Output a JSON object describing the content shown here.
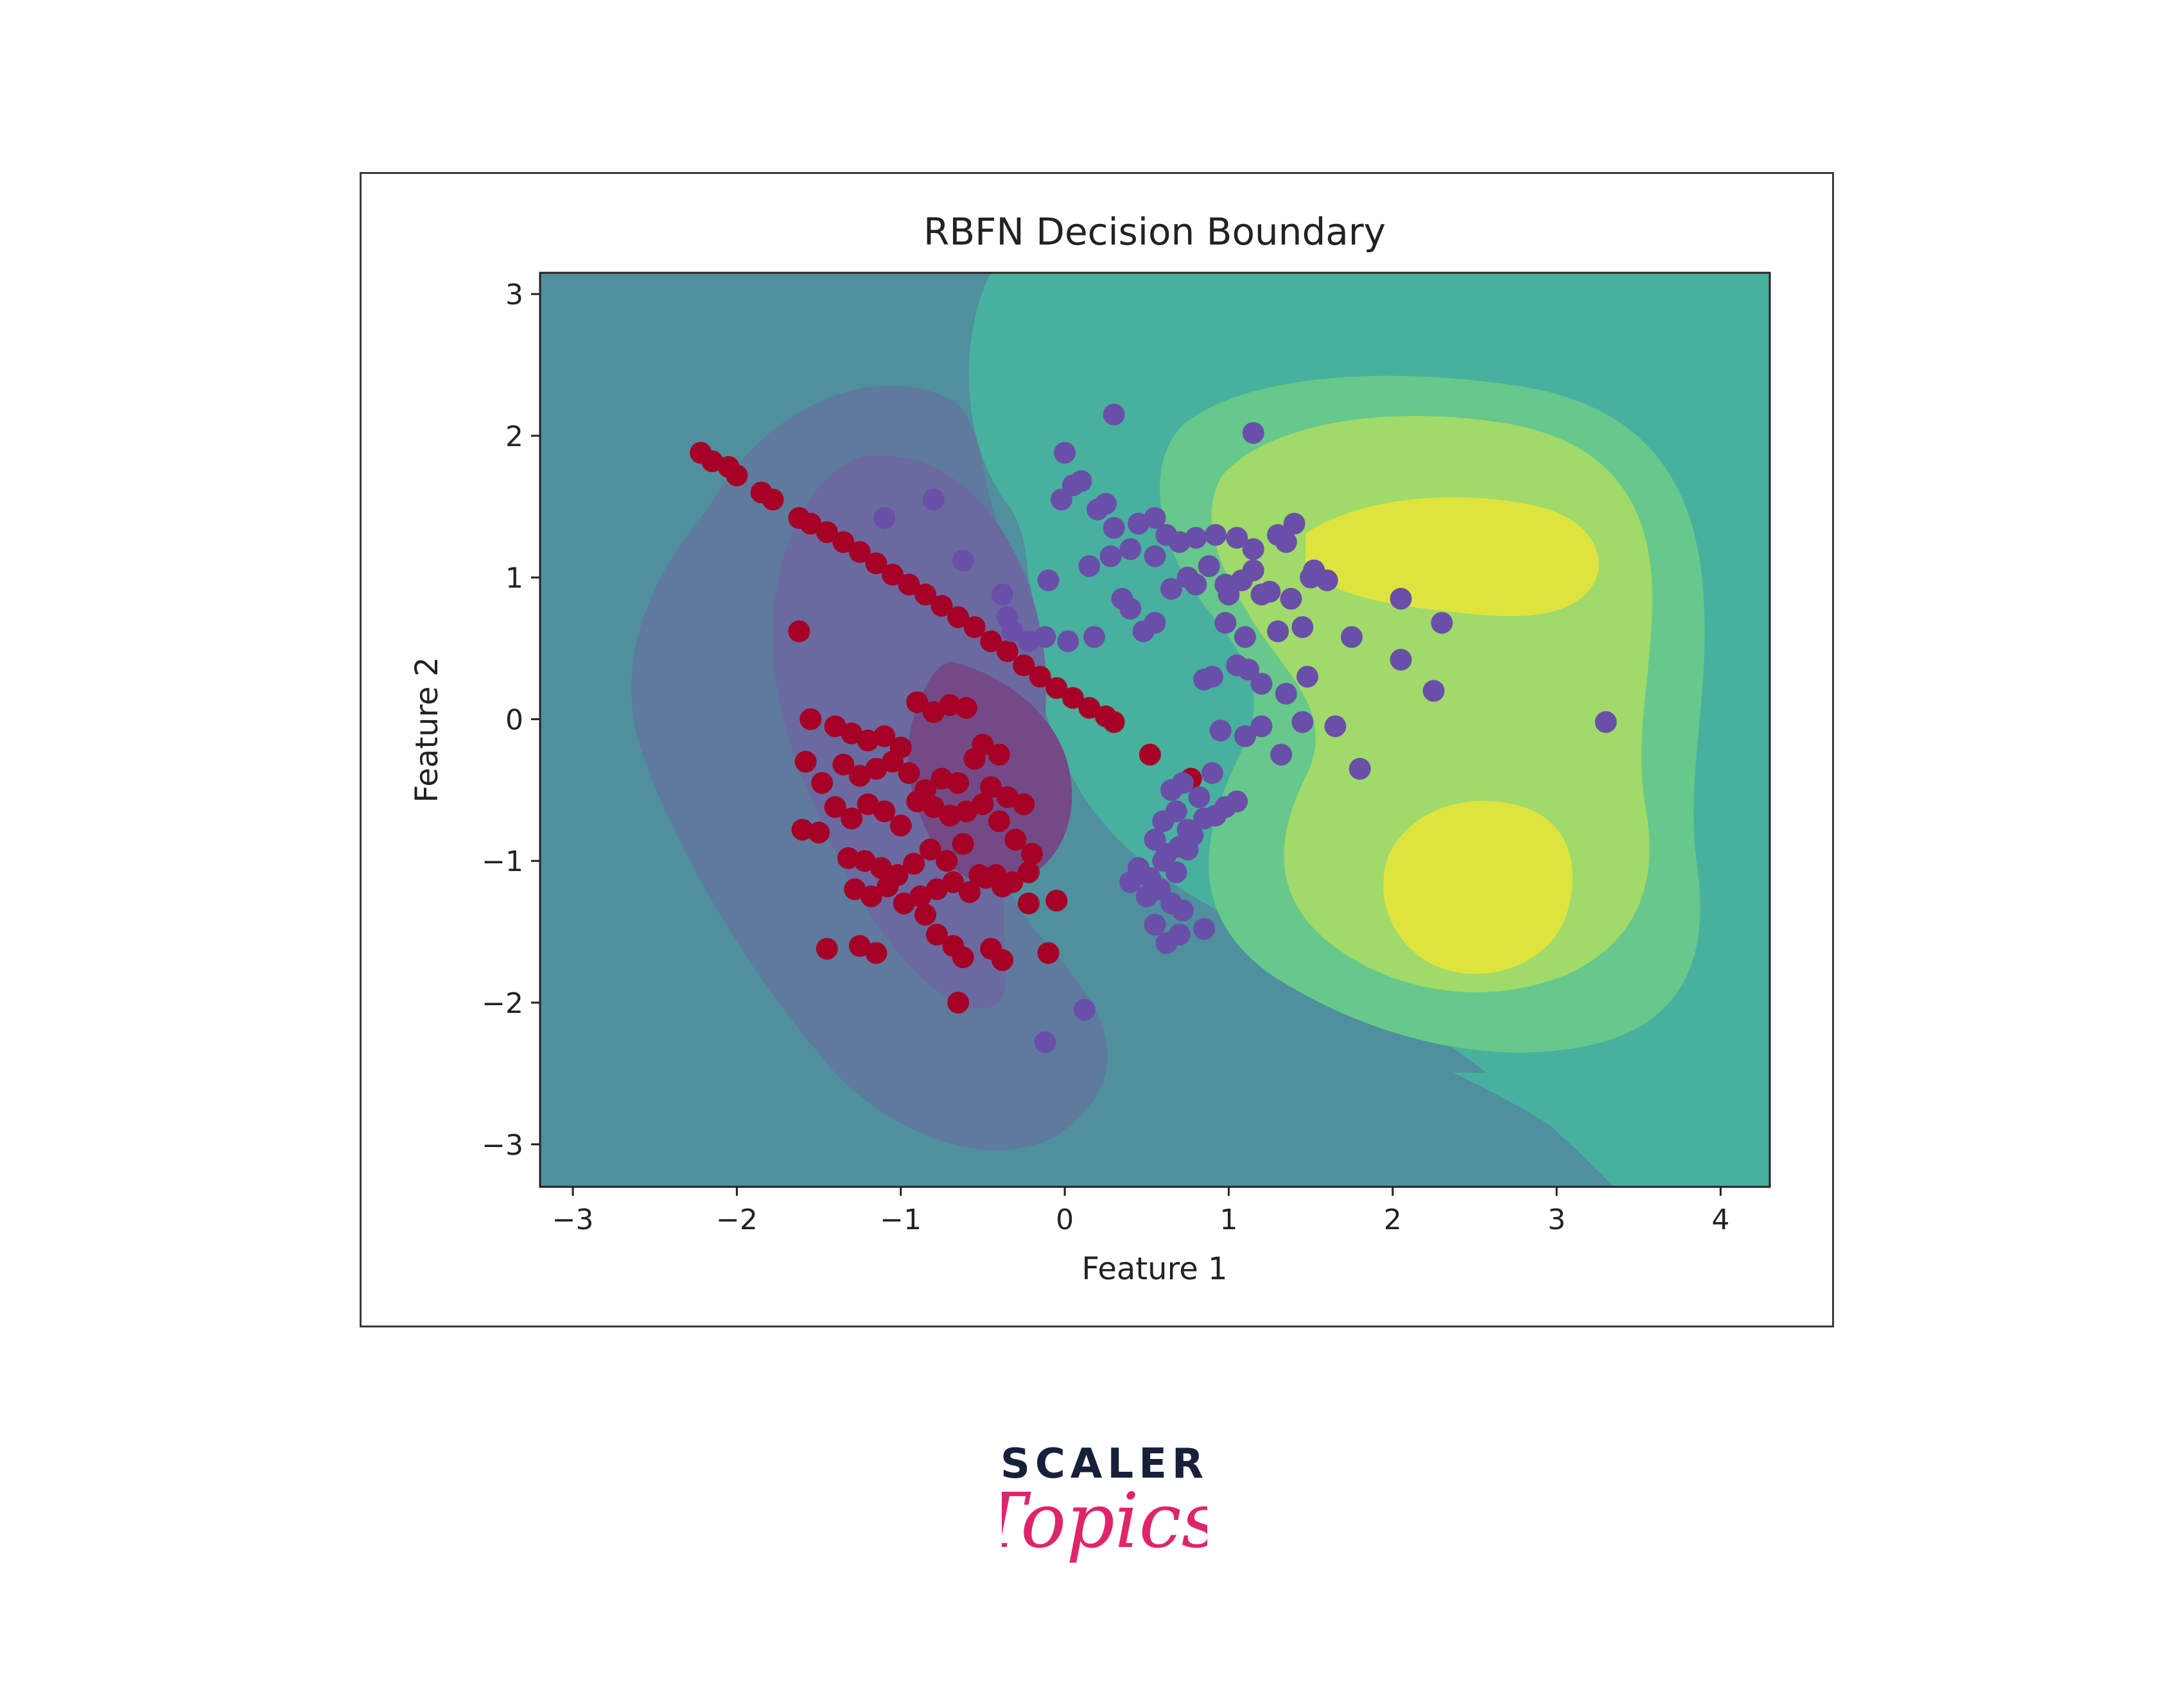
{
  "chart_data": {
    "type": "scatter",
    "title": "RBFN Decision Boundary",
    "xlabel": "Feature 1",
    "ylabel": "Feature 2",
    "xlim": [
      -3.2,
      4.3
    ],
    "ylim": [
      -3.3,
      3.15
    ],
    "xticks": [
      -3,
      -2,
      -1,
      0,
      1,
      2,
      3,
      4
    ],
    "yticks": [
      -3,
      -2,
      -1,
      0,
      1,
      2,
      3
    ],
    "xtick_labels": [
      "−3",
      "−2",
      "−1",
      "0",
      "1",
      "2",
      "3",
      "4"
    ],
    "ytick_labels": [
      "−3",
      "−2",
      "−1",
      "0",
      "1",
      "2",
      "3"
    ],
    "grid": false,
    "background": "filled decision-boundary contours (viridis)",
    "colors": {
      "class_red": "#a50026",
      "class_purple": "#6a4fa8",
      "contour_levels": [
        "#462f80",
        "#5b4a94",
        "#4f7b96",
        "#4a9a9e",
        "#48b09f",
        "#66c88a",
        "#a0da6a",
        "#dee43e"
      ]
    },
    "series": [
      {
        "color": "#a50026",
        "x": [
          -2.22,
          -2.15,
          -2.05,
          -2.0,
          -1.85,
          -1.78,
          -1.62,
          -1.55,
          -1.45,
          -1.35,
          -1.25,
          -1.15,
          -1.05,
          -0.95,
          -0.85,
          -0.75,
          -0.65,
          -0.55,
          -0.45,
          -0.35,
          -0.25,
          -0.15,
          -0.05,
          0.05,
          0.15,
          0.25,
          0.3,
          -1.62,
          -1.55,
          -1.4,
          -1.3,
          -1.2,
          -1.1,
          -1.0,
          -0.9,
          -0.8,
          -0.7,
          -0.6,
          -0.5,
          -0.4,
          -1.58,
          -1.48,
          -1.35,
          -1.25,
          -1.15,
          -1.05,
          -0.95,
          -0.85,
          -0.75,
          -0.65,
          -0.55,
          -0.45,
          -0.35,
          -0.25,
          -1.6,
          -1.5,
          -1.4,
          -1.3,
          -1.2,
          -1.1,
          -1.0,
          -0.9,
          -0.8,
          -0.7,
          -0.6,
          -0.5,
          -0.4,
          -0.3,
          -0.2,
          -1.32,
          -1.22,
          -1.12,
          -1.02,
          -0.92,
          -0.82,
          -0.72,
          -0.62,
          -0.52,
          -0.42,
          -0.32,
          -0.22,
          -1.28,
          -1.18,
          -1.08,
          -0.98,
          -0.88,
          -0.78,
          -0.68,
          -0.58,
          -0.48,
          -0.38,
          -0.22,
          -1.25,
          -1.15,
          -0.78,
          -0.68,
          -0.45,
          -0.38,
          -0.1,
          -0.65,
          -0.05,
          0.52,
          0.77,
          -0.62,
          -1.45,
          -0.85
        ],
        "y": [
          1.88,
          1.82,
          1.78,
          1.72,
          1.6,
          1.55,
          1.42,
          1.38,
          1.32,
          1.25,
          1.18,
          1.1,
          1.02,
          0.95,
          0.88,
          0.8,
          0.72,
          0.65,
          0.55,
          0.48,
          0.38,
          0.3,
          0.22,
          0.15,
          0.08,
          0.02,
          -0.02,
          0.62,
          0.0,
          -0.05,
          -0.1,
          -0.15,
          -0.12,
          -0.2,
          0.12,
          0.05,
          0.1,
          0.08,
          -0.18,
          -0.25,
          -0.3,
          -0.45,
          -0.32,
          -0.4,
          -0.35,
          -0.3,
          -0.38,
          -0.5,
          -0.42,
          -0.45,
          -0.28,
          -0.48,
          -0.55,
          -0.6,
          -0.78,
          -0.8,
          -0.62,
          -0.7,
          -0.6,
          -0.65,
          -0.75,
          -0.58,
          -0.62,
          -0.68,
          -0.65,
          -0.6,
          -0.72,
          -0.85,
          -0.95,
          -0.98,
          -1.0,
          -1.05,
          -1.1,
          -1.02,
          -0.92,
          -1.0,
          -0.88,
          -1.1,
          -1.1,
          -1.15,
          -1.08,
          -1.2,
          -1.25,
          -1.18,
          -1.3,
          -1.25,
          -1.2,
          -1.15,
          -1.22,
          -1.12,
          -1.18,
          -1.3,
          -1.6,
          -1.65,
          -1.52,
          -1.6,
          -1.62,
          -1.7,
          -1.65,
          -2.0,
          -1.28,
          -0.25,
          -0.42,
          -1.68,
          -1.62,
          -1.38
        ],
        "marker": "circle"
      },
      {
        "color": "#6a4fa8",
        "x": [
          0.3,
          1.15,
          0.0,
          0.05,
          -0.02,
          0.1,
          0.2,
          0.25,
          0.3,
          0.45,
          0.55,
          0.62,
          0.7,
          0.8,
          0.92,
          1.05,
          1.15,
          1.3,
          1.4,
          0.15,
          0.28,
          0.4,
          0.55,
          0.65,
          0.75,
          0.88,
          0.98,
          1.08,
          1.2,
          1.35,
          1.5,
          1.6,
          -0.1,
          0.35,
          0.55,
          0.8,
          1.0,
          1.15,
          1.25,
          1.38,
          1.52,
          1.75,
          2.05,
          2.3,
          0.18,
          0.4,
          0.48,
          0.85,
          0.98,
          1.1,
          1.3,
          1.45,
          2.05,
          2.25,
          0.9,
          1.05,
          1.12,
          1.2,
          1.35,
          1.48,
          0.95,
          1.1,
          1.2,
          1.32,
          1.45,
          1.65,
          1.8,
          0.65,
          0.72,
          0.82,
          0.9,
          0.98,
          1.05,
          0.6,
          0.68,
          0.75,
          0.85,
          0.92,
          0.55,
          0.62,
          0.7,
          0.78,
          0.45,
          0.52,
          0.6,
          0.68,
          0.75,
          0.4,
          0.5,
          0.58,
          0.65,
          0.72,
          0.85,
          0.55,
          0.62,
          0.7,
          3.3,
          0.12,
          -0.12,
          -1.1,
          -0.8,
          -0.62,
          -0.38,
          -0.35,
          -0.12,
          -0.32,
          0.02,
          -0.22
        ],
        "y": [
          2.15,
          2.02,
          1.88,
          1.65,
          1.55,
          1.68,
          1.48,
          1.52,
          1.35,
          1.38,
          1.42,
          1.3,
          1.25,
          1.28,
          1.3,
          1.28,
          1.2,
          1.3,
          1.38,
          1.08,
          1.15,
          1.2,
          1.15,
          0.92,
          1.0,
          1.08,
          0.95,
          0.98,
          0.88,
          1.25,
          1.0,
          0.98,
          0.98,
          0.85,
          0.68,
          0.95,
          0.88,
          1.05,
          0.9,
          0.85,
          1.05,
          0.58,
          0.85,
          0.68,
          0.58,
          0.78,
          0.62,
          0.28,
          0.68,
          0.58,
          0.62,
          0.65,
          0.42,
          0.2,
          0.3,
          0.38,
          0.35,
          0.25,
          0.18,
          0.3,
          -0.08,
          -0.12,
          -0.05,
          -0.25,
          -0.02,
          -0.05,
          -0.35,
          -0.5,
          -0.45,
          -0.55,
          -0.38,
          -0.62,
          -0.58,
          -0.72,
          -0.65,
          -0.78,
          -0.7,
          -0.68,
          -0.85,
          -0.95,
          -0.9,
          -0.82,
          -1.05,
          -1.12,
          -1.0,
          -1.08,
          -0.92,
          -1.15,
          -1.25,
          -1.2,
          -1.3,
          -1.35,
          -1.48,
          -1.45,
          -1.58,
          -1.52,
          -0.02,
          -2.05,
          -2.28,
          1.42,
          1.55,
          1.12,
          0.88,
          0.72,
          0.58,
          0.62,
          0.55,
          0.55
        ],
        "marker": "circle"
      }
    ]
  },
  "brand": {
    "word": "SCALER",
    "script": "Topics",
    "word_color": "#17203a",
    "script_color": "#e0246c"
  }
}
